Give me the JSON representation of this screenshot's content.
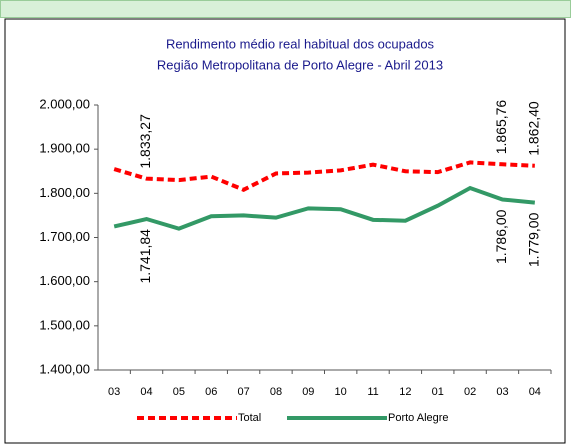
{
  "chart_data": {
    "type": "line",
    "title": "Rendimento médio real habitual dos ocupados",
    "subtitle": "Região Metropolitana de Porto Alegre - Abril 2013",
    "categories": [
      "03",
      "04",
      "05",
      "06",
      "07",
      "08",
      "09",
      "10",
      "11",
      "12",
      "01",
      "02",
      "03",
      "04"
    ],
    "series": [
      {
        "name": "Total",
        "color": "#ff0000",
        "dashed": true,
        "values": [
          1855,
          1833.27,
          1830,
          1838,
          1808,
          1845,
          1847,
          1852,
          1865,
          1850,
          1848,
          1870,
          1865.76,
          1862.4
        ],
        "value_labels": [
          null,
          "1.833,27",
          null,
          null,
          null,
          null,
          null,
          null,
          null,
          null,
          null,
          null,
          "1.865,76",
          "1.862,40"
        ]
      },
      {
        "name": "Porto Alegre",
        "color": "#339966",
        "dashed": false,
        "values": [
          1725,
          1741.84,
          1720,
          1748,
          1750,
          1745,
          1766,
          1764,
          1740,
          1738,
          1772,
          1812,
          1786.0,
          1779.0
        ],
        "value_labels": [
          null,
          "1.741,84",
          null,
          null,
          null,
          null,
          null,
          null,
          null,
          null,
          null,
          null,
          "1.786,00",
          "1.779,00"
        ]
      }
    ],
    "ylim": [
      1400,
      2000
    ],
    "yticks": [
      {
        "value": 1400,
        "label": "1.400,00"
      },
      {
        "value": 1500,
        "label": "1.500,00"
      },
      {
        "value": 1600,
        "label": "1.600,00"
      },
      {
        "value": 1700,
        "label": "1.700,00"
      },
      {
        "value": 1800,
        "label": "1.800,00"
      },
      {
        "value": 1900,
        "label": "1.900,00"
      },
      {
        "value": 2000,
        "label": "2.000,00"
      }
    ],
    "legend": "bottom"
  }
}
